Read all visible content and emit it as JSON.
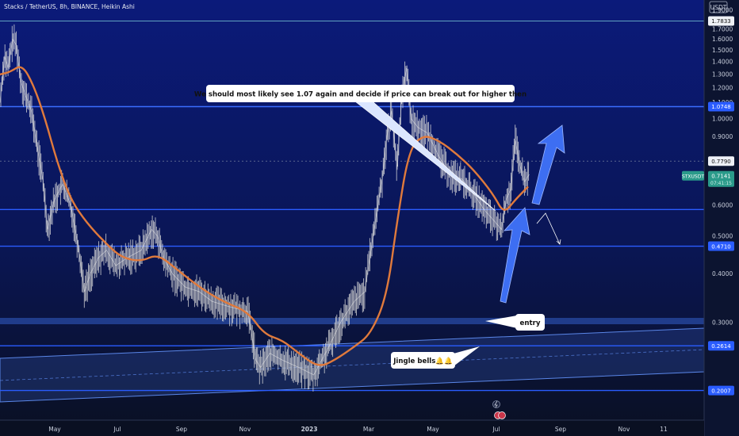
{
  "chart_data": {
    "type": "line",
    "title": "Stacks / TetherUS, 8h, BINANCE, Heikin Ashi",
    "currency": "USDT",
    "ylim": [
      0.17,
      2.0
    ],
    "y_ticks": [
      {
        "value": 1.9,
        "label": "1.9000"
      },
      {
        "value": 1.7,
        "label": "1.7000"
      },
      {
        "value": 1.6,
        "label": "1.6000"
      },
      {
        "value": 1.5,
        "label": "1.5000"
      },
      {
        "value": 1.4,
        "label": "1.4000"
      },
      {
        "value": 1.3,
        "label": "1.3000"
      },
      {
        "value": 1.2,
        "label": "1.2000"
      },
      {
        "value": 1.1,
        "label": "1.1000"
      },
      {
        "value": 1.0,
        "label": "1.0000"
      },
      {
        "value": 0.9,
        "label": "0.9000"
      },
      {
        "value": 0.6,
        "label": "0.6000"
      },
      {
        "value": 0.5,
        "label": "0.5000"
      },
      {
        "value": 0.4,
        "label": "0.4000"
      },
      {
        "value": 0.3,
        "label": "0.3000"
      }
    ],
    "x_ticks": [
      "May",
      "Jul",
      "Sep",
      "Nov",
      "2023",
      "Mar",
      "May",
      "Jul",
      "Sep",
      "Nov",
      "11"
    ],
    "price_labels": [
      {
        "value": 1.7833,
        "label": "1.7833",
        "style": "light"
      },
      {
        "value": 1.0748,
        "label": "1.0748",
        "style": "blue"
      },
      {
        "value": 0.779,
        "label": "0.7790",
        "style": "light"
      },
      {
        "value": 0.471,
        "label": "0.4710",
        "style": "blue"
      },
      {
        "value": 0.2614,
        "label": "0.2614",
        "style": "blue"
      },
      {
        "value": 0.2007,
        "label": "0.2007",
        "style": "blue"
      }
    ],
    "symbol_tag": {
      "label": "STXUSDT",
      "value": 0.7141,
      "value_label": "0.7141",
      "countdown": "07:41:15"
    },
    "horizontal_lines": [
      1.7833,
      1.0748,
      0.585,
      0.471,
      0.2614,
      0.2007
    ],
    "price_series": {
      "name": "",
      "x": [
        "2022-04-01",
        "2022-04-05",
        "2022-04-08",
        "2022-04-12",
        "2022-04-15",
        "2022-04-19",
        "2022-04-23",
        "2022-04-28",
        "2022-05-03",
        "2022-05-08",
        "2022-05-12",
        "2022-05-18",
        "2022-05-25",
        "2022-06-01",
        "2022-06-07",
        "2022-06-13",
        "2022-06-18",
        "2022-06-25",
        "2022-07-02",
        "2022-07-10",
        "2022-07-20",
        "2022-08-01",
        "2022-08-10",
        "2022-08-15",
        "2022-08-20",
        "2022-08-28",
        "2022-09-08",
        "2022-09-20",
        "2022-10-01",
        "2022-10-15",
        "2022-11-01",
        "2022-11-08",
        "2022-11-12",
        "2022-11-20",
        "2022-12-01",
        "2022-12-15",
        "2022-12-28",
        "2023-01-10",
        "2023-01-20",
        "2023-02-01",
        "2023-02-10",
        "2023-02-18",
        "2023-02-25",
        "2023-03-01",
        "2023-03-05",
        "2023-03-10",
        "2023-03-14",
        "2023-03-18",
        "2023-03-22",
        "2023-03-28",
        "2023-04-05",
        "2023-04-15",
        "2023-04-25",
        "2023-05-05",
        "2023-05-15",
        "2023-05-25",
        "2023-06-01",
        "2023-06-08",
        "2023-06-12",
        "2023-06-16",
        "2023-06-20",
        "2023-06-24",
        "2023-06-28",
        "2023-07-02"
      ],
      "values": [
        1.1,
        1.45,
        1.35,
        1.6,
        1.55,
        1.25,
        1.15,
        1.05,
        0.85,
        0.7,
        0.52,
        0.62,
        0.68,
        0.6,
        0.48,
        0.36,
        0.4,
        0.44,
        0.46,
        0.42,
        0.44,
        0.46,
        0.52,
        0.5,
        0.44,
        0.4,
        0.37,
        0.36,
        0.34,
        0.33,
        0.32,
        0.24,
        0.23,
        0.25,
        0.24,
        0.23,
        0.22,
        0.26,
        0.3,
        0.34,
        0.36,
        0.52,
        0.7,
        0.9,
        1.05,
        0.74,
        1.15,
        1.35,
        1.0,
        0.95,
        0.92,
        0.8,
        0.72,
        0.7,
        0.64,
        0.58,
        0.55,
        0.52,
        0.62,
        0.66,
        0.88,
        0.76,
        0.69,
        0.72
      ]
    },
    "ma_series": {
      "name": "",
      "x": [
        "2022-04-01",
        "2022-04-10",
        "2022-04-20",
        "2022-04-30",
        "2022-05-10",
        "2022-05-20",
        "2022-06-01",
        "2022-06-15",
        "2022-07-01",
        "2022-07-15",
        "2022-08-01",
        "2022-08-15",
        "2022-09-01",
        "2022-09-20",
        "2022-10-10",
        "2022-11-01",
        "2022-11-15",
        "2022-12-01",
        "2022-12-15",
        "2023-01-01",
        "2023-01-15",
        "2023-02-01",
        "2023-02-15",
        "2023-03-01",
        "2023-03-10",
        "2023-03-20",
        "2023-04-01",
        "2023-04-15",
        "2023-05-01",
        "2023-05-15",
        "2023-06-01",
        "2023-06-10",
        "2023-06-20",
        "2023-07-01"
      ],
      "values": [
        1.3,
        1.32,
        1.38,
        1.22,
        1.0,
        0.78,
        0.62,
        0.54,
        0.48,
        0.44,
        0.43,
        0.45,
        0.41,
        0.37,
        0.34,
        0.32,
        0.28,
        0.27,
        0.25,
        0.23,
        0.24,
        0.26,
        0.28,
        0.35,
        0.55,
        0.83,
        0.91,
        0.88,
        0.81,
        0.74,
        0.64,
        0.57,
        0.62,
        0.67
      ]
    },
    "dates": {
      "x_start": "2022-04-01",
      "x_end": "2023-11-30"
    },
    "annotations": [
      {
        "text": "We should most likely see 1.07 again and decide if price can break out for higher then"
      },
      {
        "text": "entry"
      },
      {
        "text": "Jingle bells🔔🔔"
      }
    ],
    "colors": {
      "background_top": "#0b1a7a",
      "background_bottom": "#0a1022",
      "ma": "#e07a3c",
      "candles": "#d7d7d7",
      "level": "#2a5cff",
      "arrow": "#3d6ef2",
      "channel": "#5a86e8"
    }
  }
}
